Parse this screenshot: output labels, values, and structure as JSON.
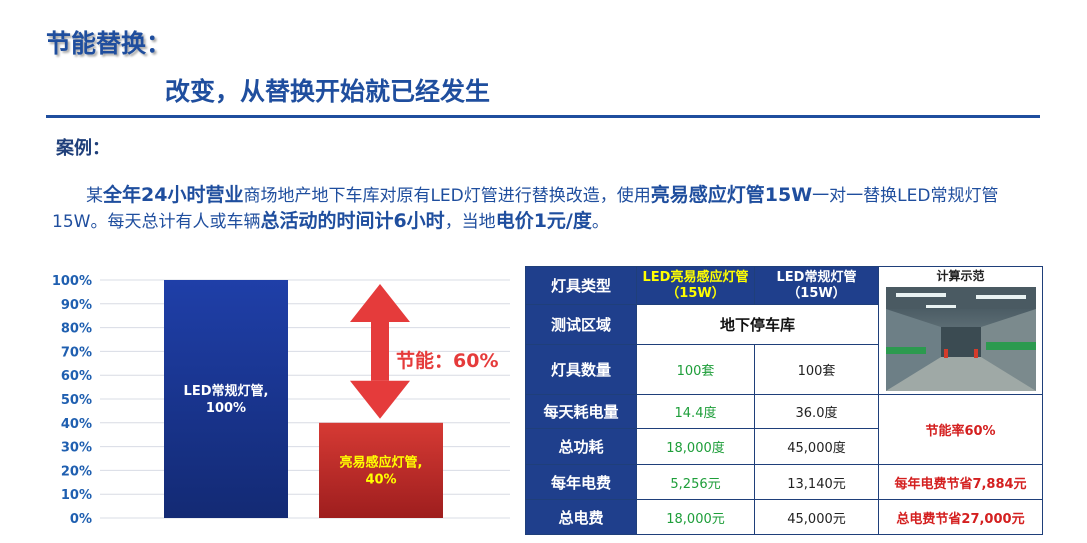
{
  "title": "节能替换：",
  "subtitle": "改变，从替换开始就已经发生",
  "case_label": "案例：",
  "paragraph": {
    "s1": "某",
    "b1": "全年24小时营业",
    "s2": "商场地产地下车库对原有LED灯管进行替换改造，使用",
    "b2": "亮易感应灯管15W",
    "s3": "一对一替换LED常规灯管15W。每天总计有人或车辆",
    "b3": "总活动的时间计6小时",
    "s4": "，当地",
    "b4": "电价1元/度",
    "s5": "。"
  },
  "chart_data": {
    "type": "bar",
    "y_ticks": [
      "100%",
      "90%",
      "80%",
      "70%",
      "60%",
      "50%",
      "40%",
      "30%",
      "20%",
      "10%",
      "0%"
    ],
    "ylim": [
      0,
      100
    ],
    "grid": true,
    "categories": [
      "LED常规灯管",
      "亮易感应灯管"
    ],
    "values": [
      100,
      40
    ],
    "bar_labels": [
      {
        "line1": "LED常规灯管,",
        "line2": "100%"
      },
      {
        "line1": "亮易感应灯管,",
        "line2": "40%"
      }
    ],
    "colors": [
      "#1e3f9e",
      "#c62b2b"
    ],
    "annotation": "节能：60%",
    "annotation_color": "#e53b3b"
  },
  "table": {
    "headers": {
      "type": "灯具类型",
      "led_line1": "LED亮易感应灯管",
      "led_line2": "（15W）",
      "std_line1": "LED常规灯管",
      "std_line2": "（15W）",
      "calc": "计算示范"
    },
    "rows": {
      "area": {
        "label": "测试区域",
        "value": "地下停车库"
      },
      "count": {
        "label": "灯具数量",
        "led": "100套",
        "std": "100套"
      },
      "daily": {
        "label": "每天耗电量",
        "led": "14.4度",
        "std": "36.0度"
      },
      "total_power": {
        "label": "总功耗",
        "led": "18,000度",
        "std": "45,000度"
      },
      "yearly": {
        "label": "每年电费",
        "led": "5,256元",
        "std": "13,140元",
        "note": "每年电费节省7,884元"
      },
      "total_cost": {
        "label": "总电费",
        "led": "18,000元",
        "std": "45,000元",
        "note": "总电费节省27,000元"
      }
    },
    "saving_rate": "节能率60%"
  },
  "colors": {
    "brand_blue": "#1f4e9e",
    "bar_blue": "#1e3f9e",
    "bar_red": "#c62b2b",
    "table_header": "#1f3f8c"
  }
}
